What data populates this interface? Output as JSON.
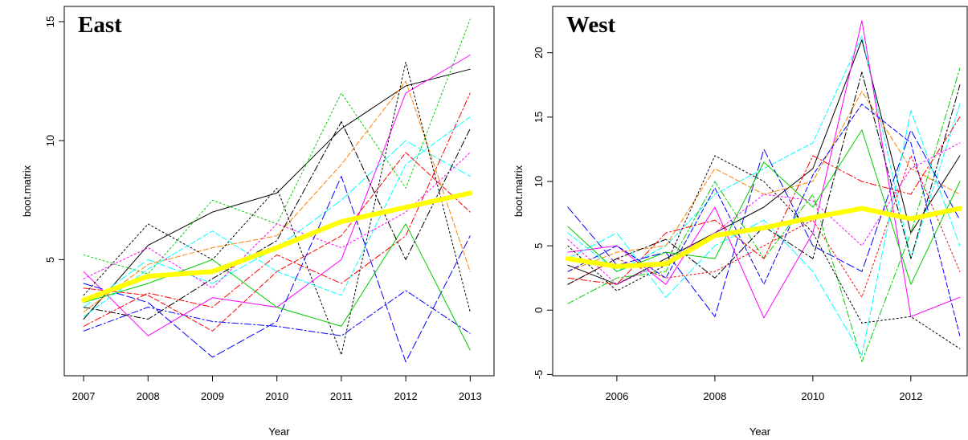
{
  "chart_data": [
    {
      "type": "line",
      "title": "East",
      "xlabel": "Year",
      "ylabel": "boot.matrix",
      "x": [
        2007,
        2008,
        2009,
        2010,
        2011,
        2012,
        2013
      ],
      "xlim": [
        2006.7,
        2013.37
      ],
      "xticks": [
        2007,
        2008,
        2009,
        2010,
        2011,
        2012,
        2013
      ],
      "ylim": [
        0.12,
        15.64
      ],
      "yticks": [
        5,
        10,
        15
      ],
      "series": [
        {
          "color": "#000000",
          "width": 1,
          "values": [
            2.5,
            5.6,
            7.0,
            7.8,
            10.5,
            12.3,
            13.0
          ]
        },
        {
          "color": "#ff0000",
          "width": 1,
          "values": [
            3.8,
            3.5,
            2.0,
            4.5,
            6.0,
            9.5,
            7.0
          ]
        },
        {
          "color": "#00cd00",
          "width": 1,
          "values": [
            5.2,
            4.4,
            7.5,
            6.5,
            12.0,
            8.0,
            15.1
          ]
        },
        {
          "color": "#0000ff",
          "width": 1,
          "values": [
            2.0,
            3.0,
            2.4,
            2.2,
            1.8,
            3.7,
            1.9
          ]
        },
        {
          "color": "#00ffff",
          "width": 1,
          "values": [
            3.0,
            5.0,
            4.0,
            5.5,
            7.5,
            10.0,
            8.5
          ]
        },
        {
          "color": "#ff00ff",
          "width": 1,
          "values": [
            4.5,
            1.8,
            3.4,
            3.0,
            5.0,
            12.0,
            13.6
          ]
        },
        {
          "color": "#ff8000",
          "width": 1,
          "values": [
            2.8,
            4.8,
            5.5,
            6.0,
            9.0,
            12.5,
            4.5
          ]
        },
        {
          "color": "#000000",
          "width": 1,
          "values": [
            3.5,
            6.5,
            5.0,
            8.0,
            1.0,
            13.3,
            2.8
          ]
        },
        {
          "color": "#ff0000",
          "width": 1,
          "values": [
            2.2,
            3.6,
            3.0,
            5.2,
            4.0,
            6.0,
            12.0
          ]
        },
        {
          "color": "#0000ff",
          "width": 1,
          "values": [
            4.0,
            3.2,
            0.9,
            2.4,
            8.5,
            0.7,
            6.0
          ]
        },
        {
          "color": "#00cd00",
          "width": 1,
          "values": [
            3.2,
            4.0,
            5.0,
            3.0,
            2.2,
            6.5,
            1.2
          ]
        },
        {
          "color": "#00ffff",
          "width": 1,
          "values": [
            2.6,
            4.6,
            6.2,
            4.5,
            3.5,
            9.0,
            11.0
          ]
        },
        {
          "color": "#ff00ff",
          "width": 1,
          "values": [
            4.2,
            5.5,
            3.8,
            6.5,
            5.5,
            7.0,
            9.5
          ]
        },
        {
          "color": "#000000",
          "width": 1,
          "values": [
            3.0,
            2.5,
            4.2,
            5.8,
            10.8,
            5.0,
            10.5
          ]
        },
        {
          "color": "#ffff00",
          "width": 6,
          "values": [
            3.3,
            4.3,
            4.5,
            5.5,
            6.6,
            7.2,
            7.8
          ]
        }
      ]
    },
    {
      "type": "line",
      "title": "West",
      "xlabel": "Year",
      "ylabel": "boot.matrix",
      "x": [
        2005,
        2006,
        2007,
        2008,
        2009,
        2010,
        2011,
        2012,
        2013
      ],
      "xlim": [
        2004.69,
        2013.15
      ],
      "xticks": [
        2006,
        2008,
        2010,
        2012
      ],
      "ylim": [
        -5.1,
        23.6
      ],
      "yticks": [
        -5,
        0,
        5,
        10,
        15,
        20
      ],
      "series": [
        {
          "color": "#000000",
          "width": 1,
          "values": [
            3.5,
            2.0,
            4.0,
            6.0,
            8.0,
            11.0,
            21.0,
            6.0,
            12.0
          ]
        },
        {
          "color": "#00ffff",
          "width": 1,
          "values": [
            6.0,
            3.0,
            5.0,
            9.0,
            11.0,
            13.0,
            21.3,
            4.0,
            16.0
          ]
        },
        {
          "color": "#ff0000",
          "width": 1,
          "values": [
            2.0,
            4.0,
            2.5,
            3.0,
            5.0,
            7.0,
            1.0,
            12.0,
            3.0
          ]
        },
        {
          "color": "#00cd00",
          "width": 1,
          "values": [
            0.5,
            2.5,
            3.0,
            10.0,
            4.0,
            9.0,
            -4.0,
            6.0,
            18.8
          ]
        },
        {
          "color": "#0000ff",
          "width": 1,
          "values": [
            8.0,
            3.5,
            4.5,
            -0.5,
            12.5,
            5.0,
            3.0,
            14.0,
            7.0
          ]
        },
        {
          "color": "#ff00ff",
          "width": 1,
          "values": [
            4.5,
            5.0,
            2.0,
            8.0,
            -0.6,
            6.0,
            22.5,
            -0.5,
            1.0
          ]
        },
        {
          "color": "#ff8000",
          "width": 1,
          "values": [
            3.0,
            4.5,
            5.0,
            11.0,
            9.0,
            10.0,
            17.0,
            11.0,
            9.0
          ]
        },
        {
          "color": "#000000",
          "width": 1,
          "values": [
            5.0,
            1.5,
            3.5,
            12.0,
            10.0,
            6.0,
            -1.0,
            -0.5,
            -3.0
          ]
        },
        {
          "color": "#ff0000",
          "width": 1,
          "values": [
            2.5,
            2.0,
            6.0,
            7.0,
            4.0,
            12.0,
            10.0,
            9.0,
            15.0
          ]
        },
        {
          "color": "#00ffff",
          "width": 1,
          "values": [
            4.0,
            6.0,
            1.0,
            5.0,
            7.0,
            3.0,
            -3.5,
            15.5,
            5.0
          ]
        },
        {
          "color": "#00cd00",
          "width": 1,
          "values": [
            6.5,
            3.0,
            4.5,
            4.0,
            11.5,
            8.0,
            14.0,
            2.0,
            10.0
          ]
        },
        {
          "color": "#0000ff",
          "width": 1,
          "values": [
            3.0,
            5.0,
            2.5,
            9.5,
            2.0,
            10.5,
            16.0,
            13.0,
            -2.0
          ]
        },
        {
          "color": "#ff00ff",
          "width": 1,
          "values": [
            5.5,
            2.0,
            3.8,
            6.0,
            9.0,
            8.5,
            5.0,
            11.0,
            13.0
          ]
        },
        {
          "color": "#000000",
          "width": 1,
          "values": [
            2.0,
            4.0,
            5.5,
            2.5,
            6.5,
            4.0,
            18.5,
            4.0,
            17.5
          ]
        },
        {
          "color": "#ffff00",
          "width": 6,
          "values": [
            4.0,
            3.4,
            3.6,
            5.8,
            6.4,
            7.2,
            7.9,
            7.1,
            7.9
          ]
        }
      ]
    }
  ]
}
